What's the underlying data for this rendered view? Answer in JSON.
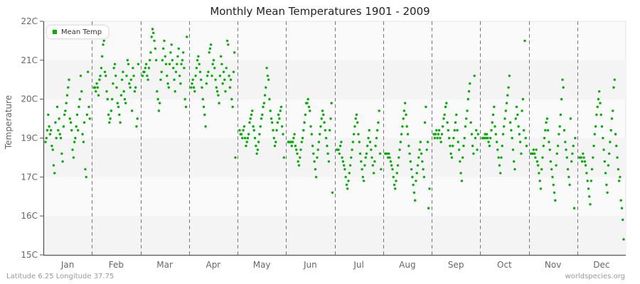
{
  "header": {
    "title": "Monthly Mean Temperatures 1901 - 2009"
  },
  "footer": {
    "location": "Latitude 6.25 Longitude 37.75",
    "source": "worldspecies.org"
  },
  "legend": {
    "label": "Mean Temp",
    "color": "#00b000"
  },
  "colors": {
    "point": "#00b000",
    "band_dark": "#f4f4f4",
    "band_light": "#fafafa",
    "axis": "#555555",
    "month_divider": "#777777"
  },
  "chart_data": {
    "type": "scatter",
    "title": "Monthly Mean Temperatures 1901 - 2009",
    "xlabel": "",
    "ylabel": "Temperature",
    "categories": [
      "Jan",
      "Feb",
      "Mar",
      "Apr",
      "May",
      "Jun",
      "Jul",
      "Aug",
      "Sep",
      "Oct",
      "Nov",
      "Dec"
    ],
    "y_ticks": [
      {
        "label": "22C",
        "pos": 7
      },
      {
        "label": "21C",
        "pos": 6
      },
      {
        "label": "20C",
        "pos": 5
      },
      {
        "label": "19C",
        "pos": 4
      },
      {
        "label": "17C",
        "pos": 3
      },
      {
        "label": "16C",
        "pos": 2
      },
      {
        "label": "15C",
        "pos": 1
      }
    ],
    "ylim_axis_units": [
      1,
      7
    ],
    "grid": "horizontal bands, vertical dashed month dividers",
    "legend_position": "top-left inside",
    "series": [
      {
        "name": "Mean Temp",
        "note": "values in axis units (1 = 15C tick, 7 = 22C tick); sampled points per month, years 1901-2009",
        "points_by_month": {
          "Jan": [
            3.9,
            4.0,
            4.2,
            4.6,
            4.3,
            4.1,
            4.2,
            3.8,
            3.7,
            3.3,
            3.1,
            4.4,
            4.0,
            4.8,
            4.2,
            4.5,
            4.1,
            4.0,
            3.6,
            3.4,
            4.3,
            4.6,
            4.7,
            4.9,
            5.1,
            5.3,
            5.5,
            4.5,
            4.4,
            4.2,
            3.7,
            3.5,
            3.9,
            4.0,
            4.3,
            4.6,
            4.2,
            4.8,
            5.0,
            5.6,
            5.2,
            4.1,
            3.9,
            4.4,
            3.2,
            3.0,
            4.6,
            5.7,
            4.8,
            4.5
          ],
          "Feb": [
            5.3,
            5.3,
            5.2,
            5.4,
            5.3,
            5.1,
            5.5,
            5.6,
            5.8,
            6.1,
            6.4,
            6.5,
            5.7,
            5.6,
            5.2,
            5.0,
            4.6,
            4.4,
            4.5,
            4.7,
            5.0,
            5.4,
            5.8,
            5.9,
            5.6,
            5.3,
            4.9,
            4.8,
            4.6,
            4.4,
            5.1,
            5.5,
            5.7,
            5.2,
            5.0,
            4.9,
            5.6,
            6.0,
            5.9,
            5.4,
            5.3,
            5.5,
            4.7,
            5.8,
            5.6,
            5.2,
            5.3,
            4.3,
            4.5,
            5.9
          ],
          "Mar": [
            5.6,
            5.7,
            5.7,
            5.8,
            5.9,
            5.6,
            5.5,
            5.8,
            6.0,
            6.2,
            6.6,
            6.8,
            6.7,
            6.5,
            6.3,
            6.0,
            5.2,
            5.0,
            4.7,
            4.9,
            5.5,
            5.7,
            6.0,
            6.3,
            6.5,
            6.1,
            5.9,
            5.6,
            5.4,
            5.3,
            5.9,
            6.2,
            6.4,
            6.0,
            5.8,
            5.5,
            5.2,
            5.7,
            5.9,
            6.1,
            6.3,
            5.6,
            5.4,
            5.9,
            6.0,
            6.2,
            5.8,
            5.0,
            4.8,
            6.6
          ],
          "Apr": [
            5.3,
            5.4,
            5.5,
            5.3,
            5.2,
            5.6,
            5.8,
            6.0,
            6.1,
            5.9,
            5.7,
            5.5,
            5.3,
            5.0,
            4.8,
            4.6,
            4.3,
            5.4,
            5.6,
            5.7,
            6.2,
            6.3,
            6.4,
            5.6,
            5.9,
            6.0,
            5.8,
            5.5,
            5.3,
            5.2,
            5.1,
            4.9,
            5.6,
            6.1,
            5.9,
            5.4,
            5.7,
            5.5,
            5.2,
            5.8,
            6.5,
            6.4,
            5.6,
            5.3,
            5.5,
            5.0,
            4.8,
            5.7,
            6.2,
            3.5
          ],
          "May": [
            4.2,
            4.1,
            4.1,
            4.0,
            4.2,
            4.3,
            4.0,
            3.8,
            3.9,
            4.0,
            4.1,
            4.4,
            4.5,
            4.6,
            4.7,
            4.3,
            4.2,
            4.0,
            3.8,
            3.6,
            3.7,
            3.9,
            4.1,
            4.3,
            4.5,
            4.6,
            4.8,
            4.9,
            5.1,
            5.3,
            5.8,
            5.6,
            5.5,
            5.0,
            4.7,
            4.5,
            4.4,
            4.2,
            4.0,
            3.8,
            3.9,
            4.2,
            4.4,
            4.6,
            4.5,
            4.7,
            4.8,
            4.3,
            4.1,
            3.5
          ],
          "Jun": [
            3.9,
            3.9,
            3.9,
            3.9,
            3.8,
            3.9,
            4.0,
            4.1,
            3.8,
            3.7,
            3.6,
            3.4,
            3.3,
            3.5,
            3.7,
            3.9,
            4.0,
            4.2,
            4.4,
            4.6,
            4.9,
            4.9,
            5.0,
            4.8,
            4.7,
            4.3,
            4.1,
            3.8,
            3.6,
            3.4,
            3.2,
            3.0,
            3.5,
            3.7,
            3.9,
            4.1,
            4.3,
            4.5,
            4.7,
            4.6,
            4.4,
            4.2,
            4.0,
            3.8,
            3.6,
            3.4,
            4.2,
            4.5,
            4.9,
            2.6
          ],
          "Jul": [
            3.7,
            3.7,
            3.7,
            3.6,
            3.8,
            3.9,
            3.5,
            3.4,
            3.3,
            3.2,
            3.0,
            2.8,
            2.7,
            2.9,
            3.1,
            3.3,
            3.5,
            3.7,
            3.9,
            4.1,
            4.3,
            4.5,
            4.6,
            4.4,
            4.1,
            3.9,
            3.6,
            3.4,
            3.2,
            3.0,
            2.9,
            3.3,
            3.5,
            3.6,
            3.8,
            4.0,
            4.2,
            3.9,
            3.7,
            3.5,
            3.3,
            3.1,
            3.4,
            3.8,
            4.0,
            4.2,
            4.4,
            4.7,
            3.6,
            3.2
          ],
          "Aug": [
            3.6,
            3.6,
            3.6,
            3.5,
            3.6,
            3.5,
            3.4,
            3.3,
            3.2,
            3.0,
            2.8,
            2.7,
            2.9,
            3.1,
            3.3,
            3.5,
            3.7,
            3.9,
            4.1,
            4.3,
            4.5,
            4.7,
            4.9,
            4.6,
            4.3,
            4.1,
            3.8,
            3.6,
            3.4,
            3.2,
            3.0,
            2.8,
            2.6,
            2.4,
            2.9,
            3.1,
            3.3,
            3.5,
            3.7,
            3.9,
            3.6,
            3.4,
            3.2,
            3.0,
            4.4,
            4.8,
            3.7,
            3.9,
            2.2,
            2.7
          ],
          "Sep": [
            4.1,
            4.0,
            4.1,
            4.2,
            4.0,
            4.1,
            4.2,
            4.0,
            3.9,
            4.1,
            4.3,
            4.5,
            4.6,
            4.8,
            4.9,
            4.4,
            4.2,
            4.0,
            3.8,
            3.6,
            3.5,
            3.8,
            4.0,
            4.2,
            4.4,
            4.6,
            4.2,
            3.9,
            3.7,
            3.4,
            3.1,
            2.9,
            3.5,
            3.8,
            4.0,
            4.3,
            4.5,
            4.7,
            5.0,
            5.2,
            5.4,
            4.4,
            4.1,
            3.8,
            3.6,
            5.6,
            4.0,
            4.2,
            3.7,
            4.1
          ],
          "Oct": [
            4.0,
            4.0,
            4.0,
            4.1,
            4.0,
            4.1,
            4.0,
            3.9,
            3.8,
            4.0,
            4.2,
            4.4,
            4.6,
            4.8,
            4.3,
            4.1,
            3.9,
            3.7,
            3.5,
            3.3,
            3.1,
            3.5,
            3.8,
            4.1,
            4.3,
            4.5,
            4.7,
            4.9,
            5.1,
            5.3,
            5.6,
            4.4,
            4.2,
            4.0,
            3.7,
            3.4,
            3.2,
            4.5,
            4.8,
            4.6,
            4.3,
            4.1,
            3.9,
            3.6,
            4.7,
            5.0,
            4.2,
            6.5,
            4.0,
            3.8
          ],
          "Nov": [
            3.6,
            3.6,
            3.6,
            3.7,
            3.6,
            3.5,
            3.7,
            3.4,
            3.3,
            3.1,
            2.9,
            2.7,
            3.2,
            3.5,
            3.8,
            4.0,
            4.2,
            4.4,
            4.5,
            4.2,
            3.9,
            3.7,
            3.4,
            3.2,
            3.0,
            2.8,
            2.6,
            2.4,
            3.3,
            3.6,
            3.8,
            4.1,
            4.3,
            4.6,
            5.0,
            5.5,
            5.3,
            4.2,
            3.9,
            3.7,
            3.5,
            3.2,
            3.0,
            2.8,
            4.5,
            3.4,
            3.6,
            3.8,
            2.2,
            4.0
          ],
          "Dec": [
            3.5,
            3.5,
            3.5,
            3.4,
            3.6,
            3.5,
            3.4,
            3.3,
            3.1,
            2.9,
            2.7,
            2.5,
            2.3,
            2.9,
            3.2,
            3.5,
            3.8,
            4.1,
            4.3,
            4.6,
            4.8,
            5.0,
            5.2,
            4.9,
            4.6,
            4.3,
            4.0,
            3.7,
            3.4,
            3.1,
            2.8,
            2.6,
            3.3,
            3.6,
            3.9,
            4.2,
            4.5,
            4.7,
            5.3,
            5.5,
            4.1,
            3.8,
            3.5,
            3.2,
            2.9,
            3.0,
            2.4,
            2.2,
            1.9,
            1.4
          ]
        }
      }
    ]
  }
}
